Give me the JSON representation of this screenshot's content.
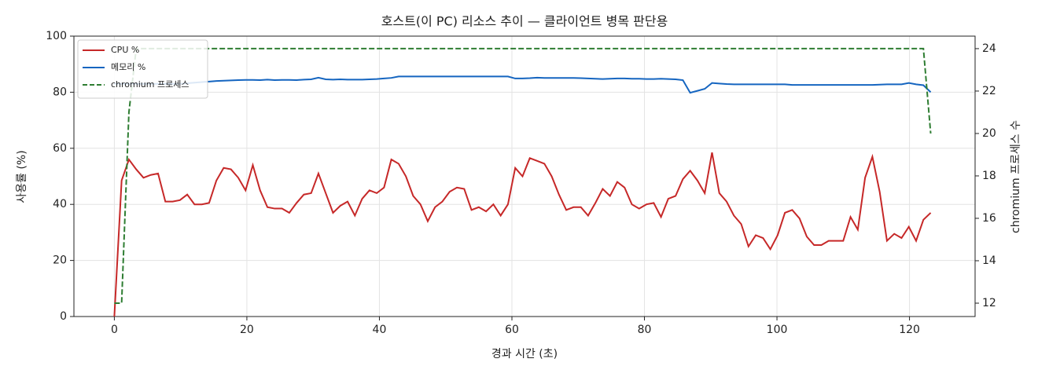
{
  "chart_data": {
    "type": "line",
    "title": "호스트(이 PC) 리소스 추이 — 클라이언트 병목 판단용",
    "xlabel": "경과 시간 (초)",
    "ylabel": "사용률 (%)",
    "y2label": "chromium 프로세스 수",
    "x": [
      0,
      1.1,
      2.2,
      3.3,
      4.4,
      5.5,
      6.6,
      7.7,
      8.8,
      9.9,
      11,
      12.1,
      13.2,
      14.3,
      15.4,
      16.5,
      17.6,
      18.7,
      19.8,
      20.9,
      22,
      23.1,
      24.2,
      25.3,
      26.4,
      27.5,
      28.6,
      29.7,
      30.8,
      31.9,
      33,
      34.1,
      35.2,
      36.3,
      37.4,
      38.5,
      39.6,
      40.7,
      41.8,
      42.9,
      44,
      45.1,
      46.2,
      47.3,
      48.4,
      49.5,
      50.6,
      51.7,
      52.8,
      53.9,
      55,
      56.1,
      57.2,
      58.3,
      59.4,
      60.5,
      61.6,
      62.7,
      63.8,
      64.9,
      66,
      67.1,
      68.2,
      69.3,
      70.4,
      71.5,
      72.6,
      73.7,
      74.8,
      75.9,
      77,
      78.1,
      79.2,
      80.3,
      81.4,
      82.5,
      83.6,
      84.7,
      85.8,
      86.9,
      88,
      89.1,
      90.2,
      91.3,
      92.4,
      93.5,
      94.6,
      95.7,
      96.8,
      97.9,
      99,
      100.1,
      101.2,
      102.3,
      103.4,
      104.5,
      105.6,
      106.7,
      107.8,
      108.9,
      110,
      111.1,
      112.2,
      113.3,
      114.4,
      115.5,
      116.6,
      117.7,
      118.8,
      119.9,
      121,
      122.1,
      123.2
    ],
    "series": [
      {
        "name": "CPU %",
        "color": "#c62828",
        "values": [
          0,
          48.5,
          56,
          52.5,
          49.5,
          50.5,
          51,
          41,
          41,
          41.5,
          43.5,
          40,
          40,
          40.5,
          48.5,
          53,
          52.5,
          49.5,
          45,
          54,
          45,
          39,
          38.5,
          38.5,
          37,
          40.5,
          43.5,
          44,
          51,
          44,
          37,
          39.5,
          41,
          36,
          42,
          45,
          44,
          46,
          56,
          54.5,
          50,
          43,
          40,
          34,
          39,
          41,
          44.5,
          46,
          45.5,
          38,
          39,
          37.5,
          40,
          36,
          40,
          53,
          50,
          56.5,
          55.5,
          54.5,
          50,
          43.5,
          38,
          39,
          39,
          36,
          40.5,
          45.5,
          43,
          48,
          46,
          40,
          38.5,
          40,
          40.5,
          35.5,
          42,
          43,
          49,
          52,
          48.5,
          44,
          58.5,
          44,
          41,
          36,
          33,
          25,
          29,
          28,
          24,
          29,
          37,
          38,
          35,
          28.5,
          25.5,
          25.5,
          27,
          27,
          27,
          35.5,
          31,
          49.5,
          57,
          44.5,
          27,
          29.5,
          28,
          32,
          27,
          34.5,
          37
        ]
      },
      {
        "name": "메모리 %",
        "color": "#1565c0",
        "values": [
          83,
          83,
          83,
          83,
          83,
          83,
          83,
          83,
          83,
          83,
          83.2,
          83.4,
          83.6,
          83.8,
          84,
          84.1,
          84.2,
          84.3,
          84.4,
          84.4,
          84.3,
          84.5,
          84.3,
          84.4,
          84.4,
          84.3,
          84.5,
          84.6,
          85.2,
          84.6,
          84.5,
          84.6,
          84.5,
          84.5,
          84.5,
          84.6,
          84.7,
          84.9,
          85.1,
          85.6,
          85.6,
          85.6,
          85.6,
          85.6,
          85.6,
          85.6,
          85.6,
          85.6,
          85.6,
          85.6,
          85.6,
          85.6,
          85.6,
          85.6,
          85.6,
          84.9,
          84.9,
          85,
          85.2,
          85.1,
          85.1,
          85.1,
          85.1,
          85.1,
          85,
          84.9,
          84.8,
          84.7,
          84.8,
          84.9,
          84.9,
          84.8,
          84.8,
          84.7,
          84.7,
          84.8,
          84.7,
          84.6,
          84.3,
          79.8,
          80.5,
          81.2,
          83.3,
          83.1,
          82.9,
          82.8,
          82.8,
          82.8,
          82.8,
          82.8,
          82.8,
          82.8,
          82.8,
          82.6,
          82.6,
          82.6,
          82.6,
          82.6,
          82.6,
          82.6,
          82.6,
          82.6,
          82.6,
          82.6,
          82.6,
          82.7,
          82.8,
          82.8,
          82.8,
          83.3,
          82.8,
          82.5,
          80
        ]
      },
      {
        "name": "chromium 프로세스",
        "color": "#2e7d32",
        "dash": "dashed",
        "axis": "y2",
        "values": [
          12,
          12,
          21,
          24,
          24,
          24,
          24,
          24,
          24,
          24,
          24,
          24,
          24,
          24,
          24,
          24,
          24,
          24,
          24,
          24,
          24,
          24,
          24,
          24,
          24,
          24,
          24,
          24,
          24,
          24,
          24,
          24,
          24,
          24,
          24,
          24,
          24,
          24,
          24,
          24,
          24,
          24,
          24,
          24,
          24,
          24,
          24,
          24,
          24,
          24,
          24,
          24,
          24,
          24,
          24,
          24,
          24,
          24,
          24,
          24,
          24,
          24,
          24,
          24,
          24,
          24,
          24,
          24,
          24,
          24,
          24,
          24,
          24,
          24,
          24,
          24,
          24,
          24,
          24,
          24,
          24,
          24,
          24,
          24,
          24,
          24,
          24,
          24,
          24,
          24,
          24,
          24,
          24,
          24,
          24,
          24,
          24,
          24,
          24,
          24,
          24,
          24,
          24,
          24,
          24,
          24,
          24,
          24,
          24,
          24,
          24,
          24,
          20
        ]
      }
    ],
    "xlim": [
      -6.1,
      129.9
    ],
    "ylim": [
      0,
      100
    ],
    "y2lim": [
      11.37,
      24.59
    ],
    "xticks": [
      0,
      20,
      40,
      60,
      80,
      100,
      120
    ],
    "yticks": [
      0,
      20,
      40,
      60,
      80,
      100
    ],
    "y2ticks": [
      12,
      14,
      16,
      18,
      20,
      22,
      24
    ],
    "grid": true,
    "legend": "upper left"
  }
}
